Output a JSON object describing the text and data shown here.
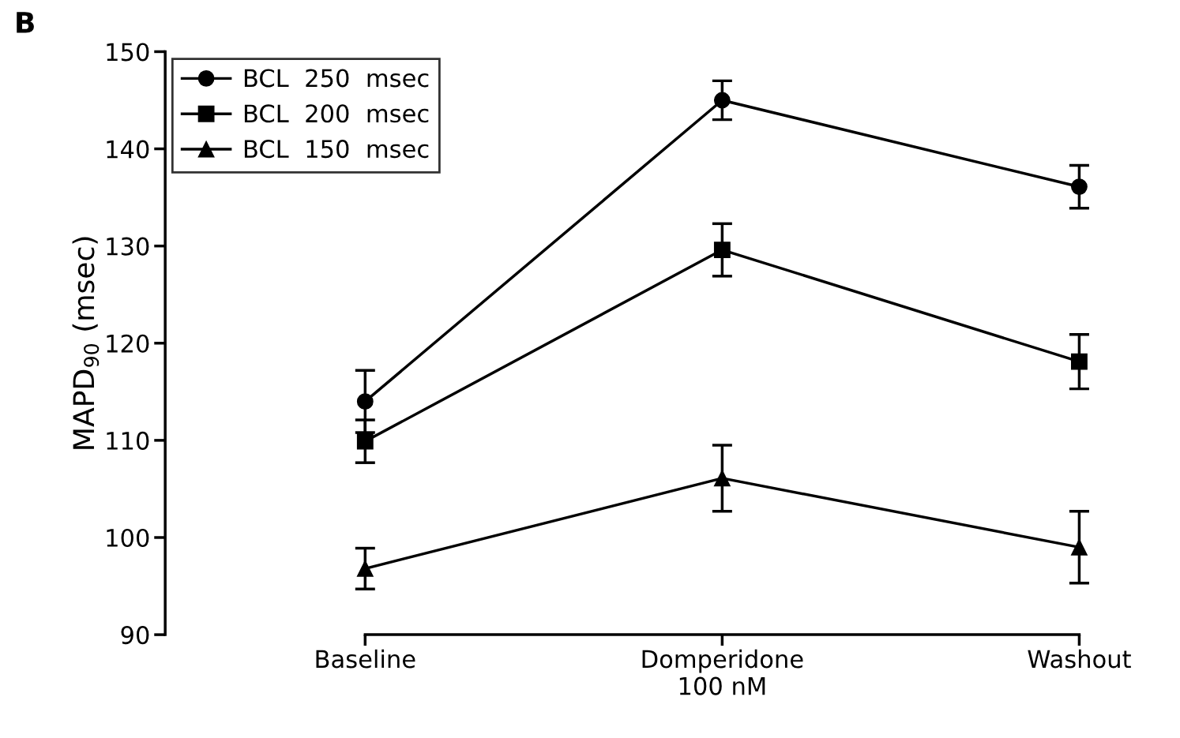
{
  "chart_data": {
    "type": "line",
    "ylabel": "MAPD$_{90}$ (msec)",
    "categories": [
      "Baseline",
      "Domperidone\n100 nM",
      "Washout"
    ],
    "ylim": [
      90,
      150
    ],
    "yticks": [
      90,
      100,
      110,
      120,
      130,
      140,
      150
    ],
    "grid": false,
    "legend": "top left",
    "line_style": "solid",
    "annotations": [
      "B"
    ],
    "series": [
      {
        "name": "BCL  250  msec",
        "color": "#000000",
        "marker": "circle",
        "values": [
          114,
          145,
          136.1
        ],
        "errors": [
          3.2,
          2,
          2.2
        ]
      },
      {
        "name": "BCL  200  msec",
        "color": "#000000",
        "marker": "square",
        "values": [
          109.9,
          129.6,
          118.1
        ],
        "errors": [
          2.2,
          2.7,
          2.8
        ]
      },
      {
        "name": "BCL  150  msec",
        "color": "#000000",
        "marker": "triangle",
        "values": [
          96.8,
          106.1,
          99
        ],
        "errors": [
          2.1,
          3.4,
          3.7
        ]
      }
    ]
  }
}
